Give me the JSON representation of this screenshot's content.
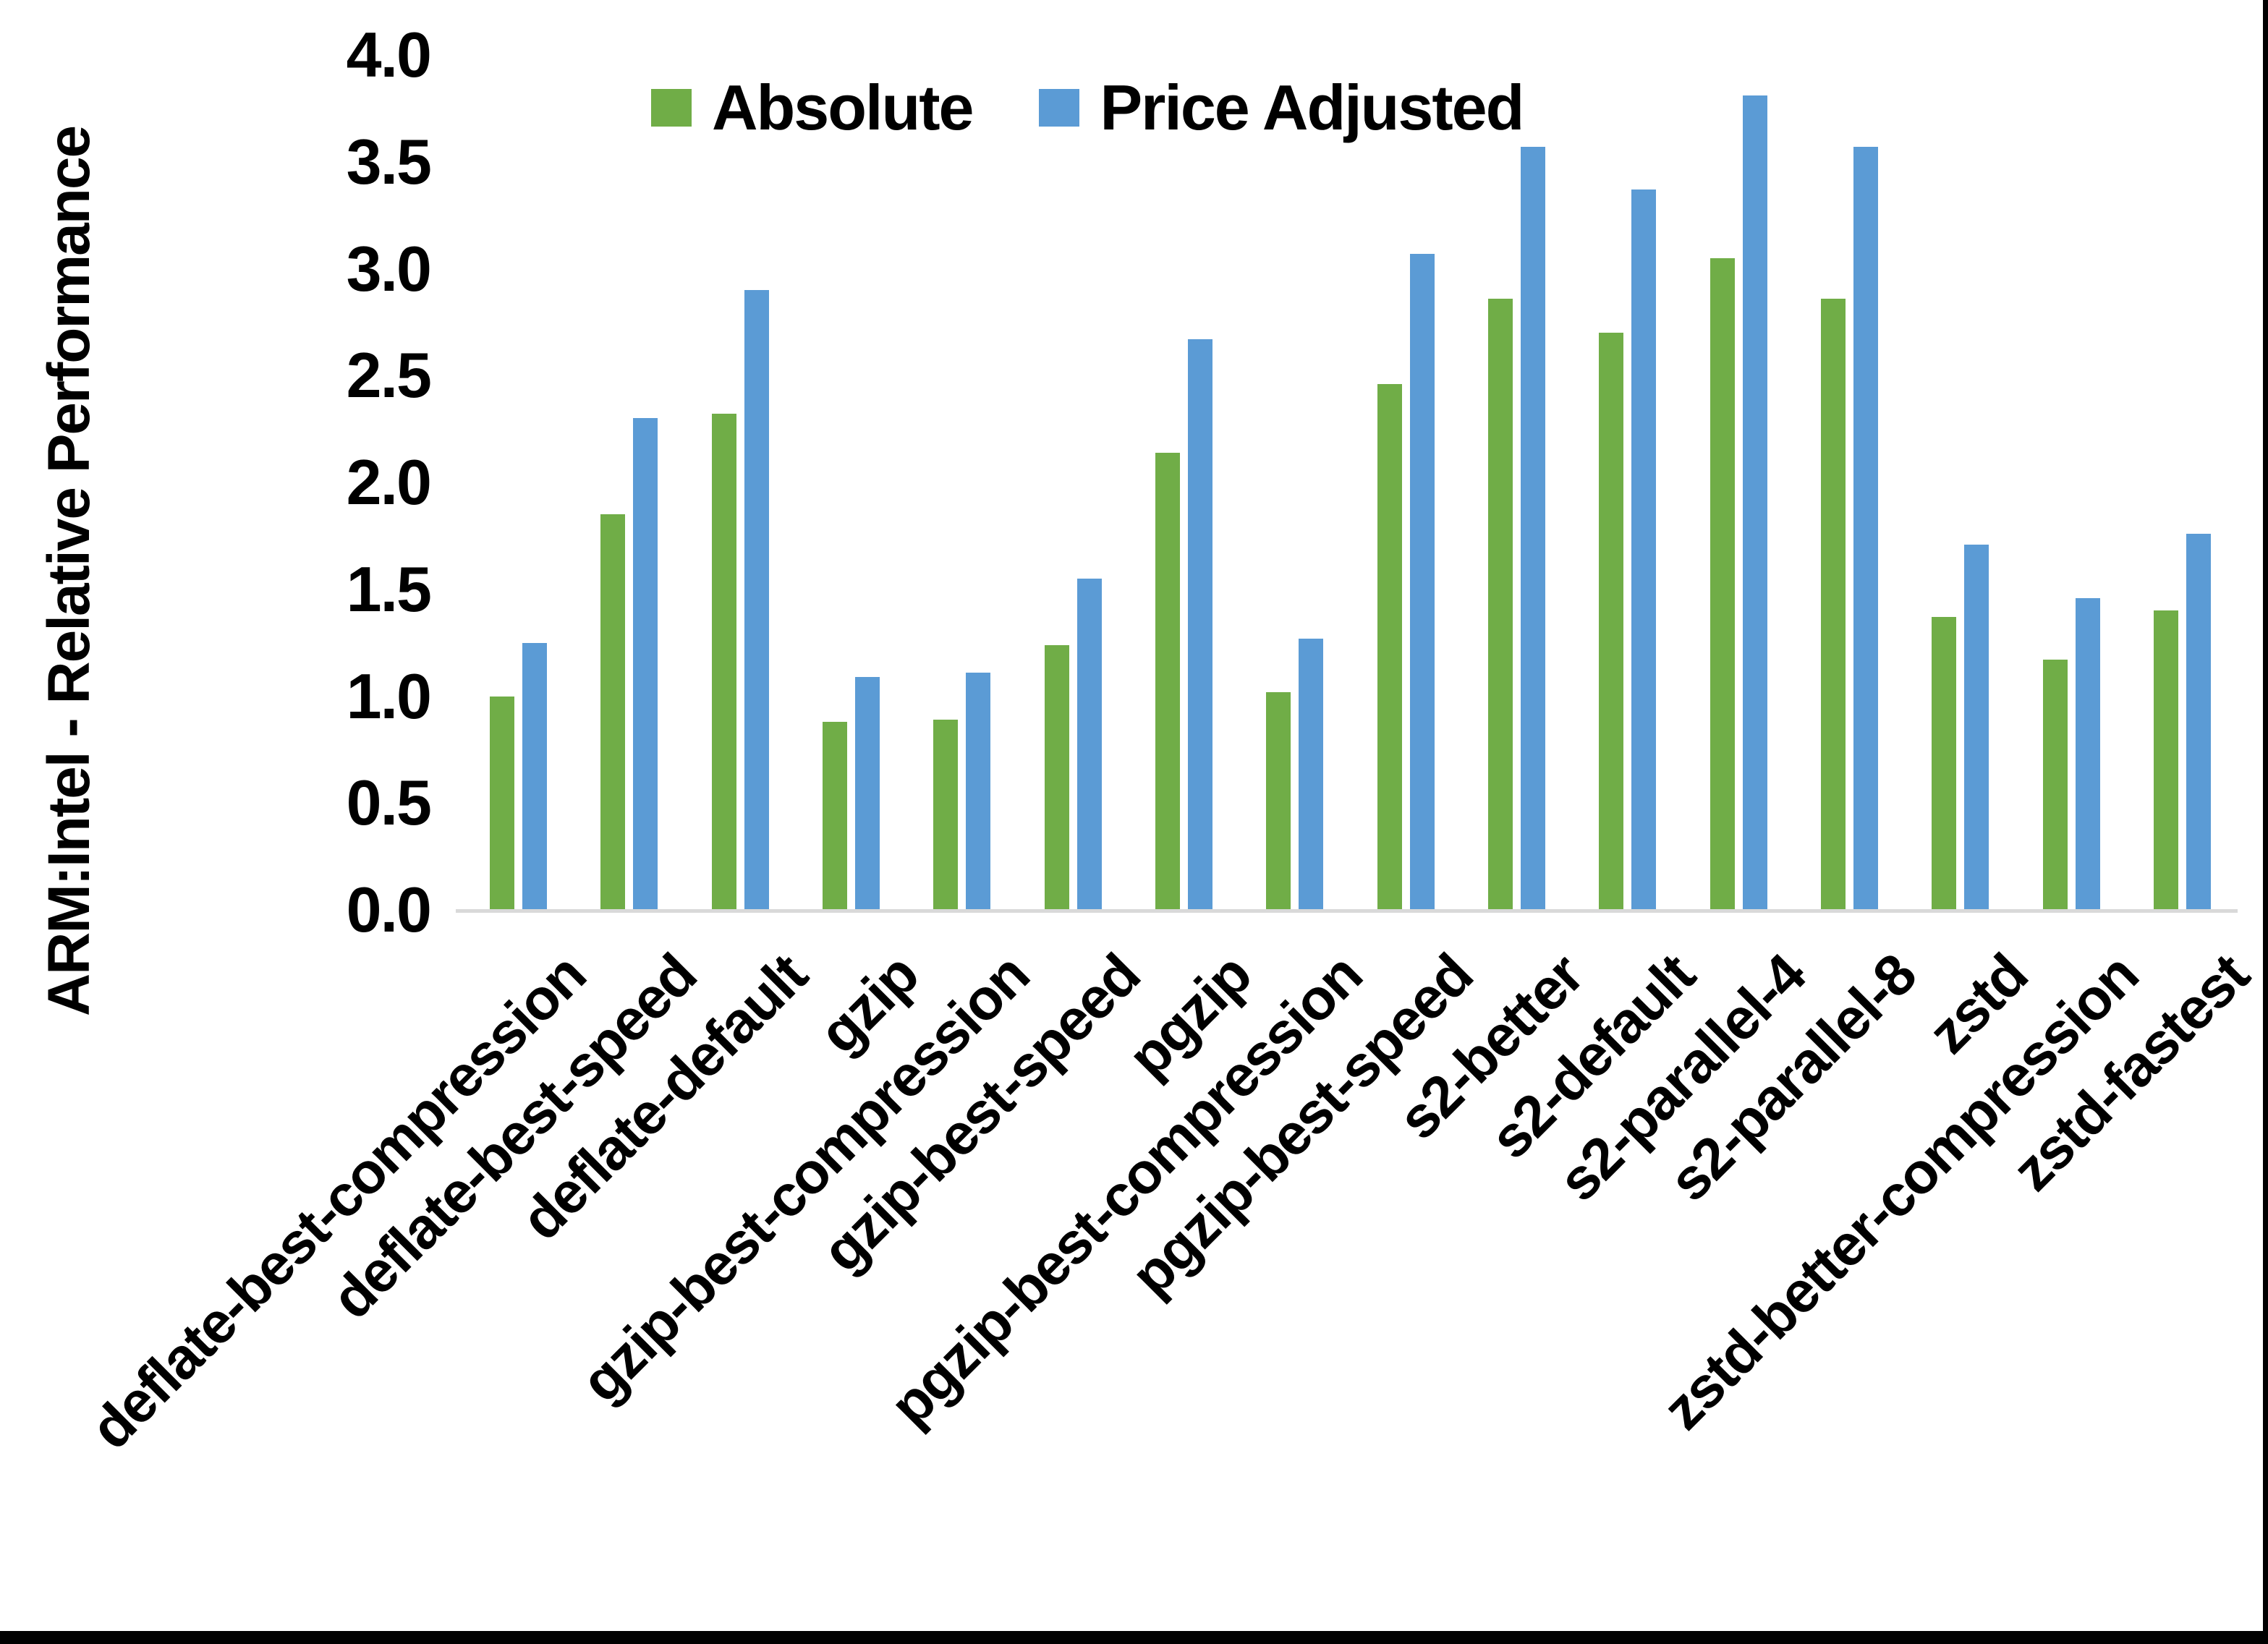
{
  "chart_data": {
    "type": "bar",
    "title": "",
    "ylabel": "ARM:Intel - Relative Performance",
    "xlabel": "",
    "ylim": [
      0.0,
      4.0
    ],
    "ytick_labels": [
      "4.0",
      "3.5",
      "3.0",
      "2.5",
      "2.0",
      "1.5",
      "1.0",
      "0.5",
      "0.0"
    ],
    "grid": false,
    "legend_position": "top-center",
    "categories": [
      "deflate-best-compression",
      "deflate-best-speed",
      "deflate-default",
      "gzip",
      "gzip-best-compression",
      "gzip-best-speed",
      "pgzip",
      "pgzip-best-compression",
      "pgzip-best-speed",
      "s2-better",
      "s2-default",
      "s2-parallel-4",
      "s2-parallel-8",
      "zstd",
      "zstd-better-compression",
      "zstd-fastest"
    ],
    "series": [
      {
        "name": "Absolute",
        "color": "#70AD47",
        "values": [
          1.0,
          1.85,
          2.32,
          0.88,
          0.89,
          1.24,
          2.14,
          1.02,
          2.46,
          2.86,
          2.7,
          3.05,
          2.86,
          1.37,
          1.17,
          1.4
        ]
      },
      {
        "name": "Price Adjusted",
        "color": "#5B9BD5",
        "values": [
          1.25,
          2.3,
          2.9,
          1.09,
          1.11,
          1.55,
          2.67,
          1.27,
          3.07,
          3.57,
          3.37,
          3.81,
          3.57,
          1.71,
          1.46,
          1.76
        ]
      }
    ]
  },
  "frame": {
    "background": "#FFFFFF",
    "axis_line_color": "#D9D9D9",
    "right_border_color": "#000000",
    "bottom_border_color": "#000000",
    "text_color": "#000000"
  }
}
